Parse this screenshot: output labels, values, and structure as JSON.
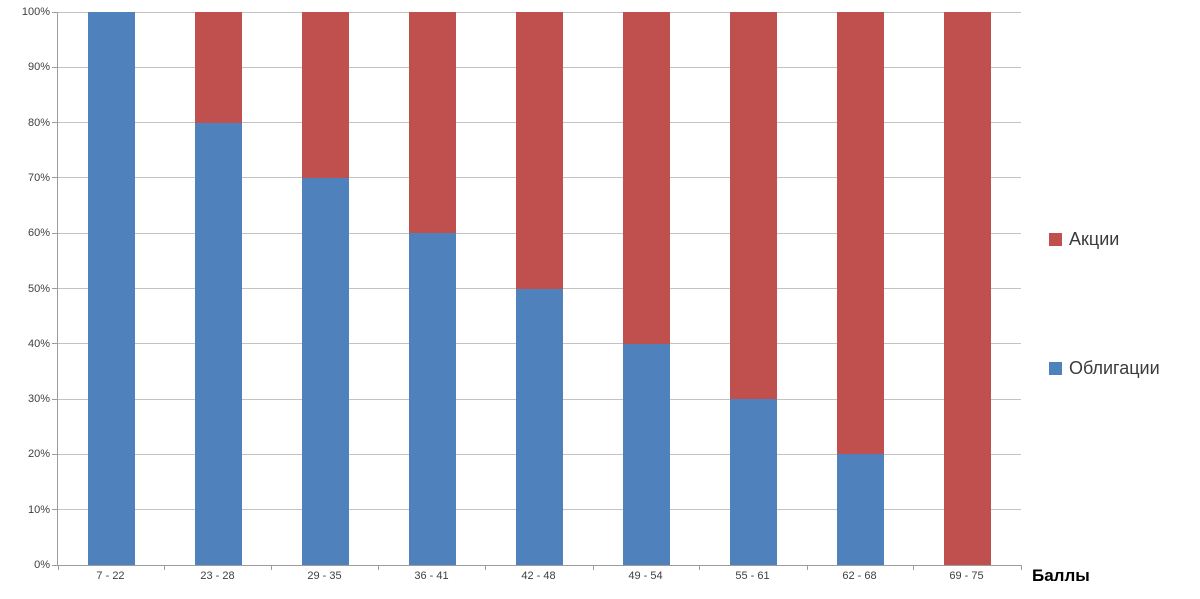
{
  "chart_data": {
    "type": "bar",
    "stacked": true,
    "percent_stacked": true,
    "title": "",
    "xlabel": "Баллы",
    "ylabel": "",
    "categories": [
      "7 - 22",
      "23 - 28",
      "29 - 35",
      "36 - 41",
      "42 - 48",
      "49 - 54",
      "55 - 61",
      "62 - 68",
      "69 - 75"
    ],
    "series": [
      {
        "name": "Акции",
        "color": "#c0504d",
        "stack_position": "top",
        "values": [
          0,
          20,
          30,
          40,
          50,
          60,
          70,
          80,
          100
        ]
      },
      {
        "name": "Облигации",
        "color": "#4f81bd",
        "stack_position": "bottom",
        "values": [
          100,
          80,
          70,
          60,
          50,
          40,
          30,
          20,
          0
        ]
      }
    ],
    "ylim": [
      0,
      100
    ],
    "ytick_step": 10,
    "ytick_labels": [
      "0%",
      "10%",
      "20%",
      "30%",
      "40%",
      "50%",
      "60%",
      "70%",
      "80%",
      "90%",
      "100%"
    ],
    "grid": true,
    "legend_position": "right"
  },
  "colors": {
    "background": "#ffffff",
    "gridline": "#c3c3c3",
    "axis_line": "#9c9c9c",
    "tick_label": "#404040",
    "series_akcii": "#c0504d",
    "series_obligacii": "#4f81bd"
  }
}
